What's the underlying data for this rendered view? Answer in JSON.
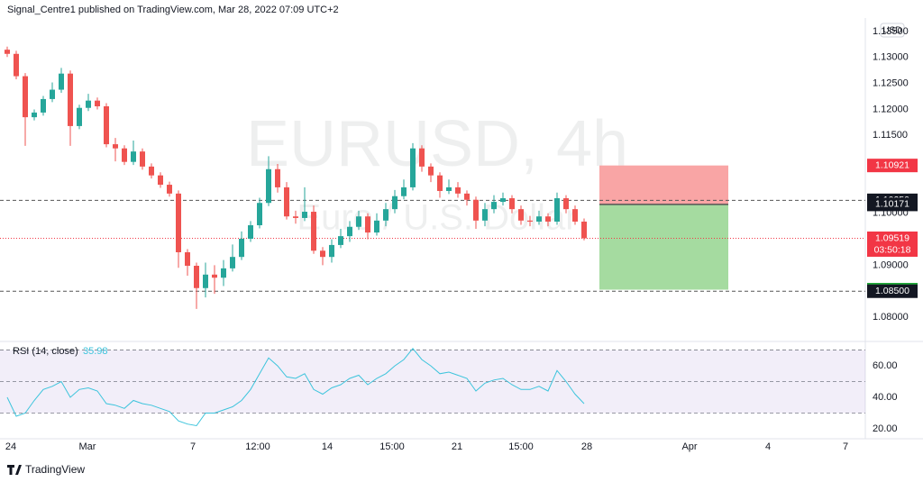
{
  "header": {
    "text": "Signal_Centre1 published on TradingView.com, Mar 28, 2022 07:09 UTC+2"
  },
  "footer": {
    "brand": "TradingView"
  },
  "chart_data": {
    "type": "candlestick",
    "title": "EURUSD, 4h",
    "subtitle": "Euro / U.S. Dollar",
    "currency": "USD",
    "up_color": "#26a69a",
    "down_color": "#ef5350",
    "open": [
      1.1315,
      1.1307,
      1.1264,
      1.1185,
      1.1194,
      1.122,
      1.1238,
      1.1269,
      1.1168,
      1.1203,
      1.1217,
      1.1206,
      1.1133,
      1.1125,
      1.1099,
      1.1119,
      1.109,
      1.1073,
      1.1055,
      1.1038,
      1.0925,
      1.0899,
      1.0856,
      1.0882,
      1.0876,
      1.0894,
      1.0916,
      1.0951,
      1.0977,
      1.102,
      1.1085,
      1.105,
      1.0994,
      1.0991,
      1.1003,
      1.0928,
      1.0916,
      1.0939,
      1.0956,
      1.0974,
      1.0994,
      1.0963,
      1.0986,
      1.1008,
      1.1033,
      1.105,
      1.1125,
      1.109,
      1.1073,
      1.1043,
      1.105,
      1.1038,
      1.1026,
      1.0986,
      1.1008,
      1.1022,
      1.1029,
      1.1008,
      1.0986,
      1.0984,
      1.0994,
      1.0984,
      1.1029,
      1.1008,
      1.0984
    ],
    "high": [
      1.1321,
      1.1313,
      1.127,
      1.12,
      1.1226,
      1.1252,
      1.128,
      1.1275,
      1.1209,
      1.123,
      1.1223,
      1.1212,
      1.1145,
      1.1131,
      1.114,
      1.1125,
      1.1096,
      1.1079,
      1.1061,
      1.1044,
      1.0931,
      1.0905,
      1.0905,
      1.09,
      1.091,
      1.094,
      1.0965,
      1.0985,
      1.103,
      1.111,
      1.1095,
      1.106,
      1.1005,
      1.105,
      1.1015,
      1.0935,
      1.095,
      1.097,
      1.0985,
      1.1005,
      1.1,
      1.1,
      1.102,
      1.1045,
      1.1065,
      1.1135,
      1.1131,
      1.1096,
      1.1079,
      1.1065,
      1.106,
      1.1044,
      1.1032,
      1.102,
      1.1035,
      1.104,
      1.1035,
      1.1015,
      1.0995,
      1.1005,
      1.1,
      1.104,
      1.1035,
      1.1015,
      1.099
    ],
    "low": [
      1.1301,
      1.1258,
      1.113,
      1.1179,
      1.1188,
      1.1214,
      1.1232,
      1.113,
      1.1162,
      1.1197,
      1.12,
      1.1127,
      1.11,
      1.1093,
      1.1093,
      1.1084,
      1.1067,
      1.1049,
      1.1032,
      1.0895,
      1.088,
      1.0816,
      1.0838,
      1.0845,
      1.086,
      1.0888,
      1.091,
      1.0945,
      1.0971,
      1.1014,
      1.104,
      1.0988,
      1.098,
      1.0985,
      1.0922,
      1.09,
      1.0905,
      1.0933,
      1.0945,
      1.0968,
      1.095,
      1.0957,
      1.0975,
      1.1,
      1.1027,
      1.1044,
      1.108,
      1.106,
      1.103,
      1.1037,
      1.103,
      1.1015,
      1.097,
      1.0975,
      1.1,
      1.1015,
      1.1,
      1.0978,
      1.0975,
      1.0978,
      1.0975,
      1.0978,
      1.1,
      1.0978,
      1.0948
    ],
    "close": [
      1.1307,
      1.1264,
      1.1185,
      1.1194,
      1.122,
      1.1238,
      1.1269,
      1.1168,
      1.1203,
      1.1217,
      1.1206,
      1.1133,
      1.1125,
      1.1099,
      1.1119,
      1.109,
      1.1073,
      1.1055,
      1.1038,
      1.0925,
      1.0899,
      1.0856,
      1.0882,
      1.0876,
      1.0894,
      1.0916,
      1.0951,
      1.0977,
      1.102,
      1.1085,
      1.105,
      1.0994,
      1.0991,
      1.1003,
      1.0928,
      1.0916,
      1.0939,
      1.0956,
      1.0974,
      1.0994,
      1.0963,
      1.0986,
      1.1008,
      1.1033,
      1.105,
      1.1125,
      1.109,
      1.1073,
      1.1043,
      1.105,
      1.1038,
      1.1026,
      1.0986,
      1.1008,
      1.1022,
      1.1029,
      1.1008,
      1.0986,
      1.0984,
      1.0994,
      1.0984,
      1.1029,
      1.1008,
      1.0984,
      1.0952
    ],
    "xlim": [
      -0.8,
      95.2
    ],
    "xticks": [
      {
        "value": 0.4,
        "label": "24"
      },
      {
        "value": 8.9,
        "label": "Mar"
      },
      {
        "value": 20.6,
        "label": "7"
      },
      {
        "value": 27.8,
        "label": "12:00"
      },
      {
        "value": 35.5,
        "label": "14"
      },
      {
        "value": 42.7,
        "label": "15:00"
      },
      {
        "value": 49.9,
        "label": "21"
      },
      {
        "value": 57,
        "label": "15:00"
      },
      {
        "value": 64.3,
        "label": "28"
      },
      {
        "value": 75.7,
        "label": "Apr"
      },
      {
        "value": 84.4,
        "label": "4"
      },
      {
        "value": 93,
        "label": "7"
      }
    ],
    "ylim": [
      1.0755,
      1.1376
    ],
    "yticks": [
      {
        "value": 1.08,
        "label": "1.08000"
      },
      {
        "value": 1.09,
        "label": "1.09000"
      },
      {
        "value": 1.1,
        "label": "1.10000"
      },
      {
        "value": 1.115,
        "label": "1.11500"
      },
      {
        "value": 1.12,
        "label": "1.12000"
      },
      {
        "value": 1.125,
        "label": "1.12500"
      },
      {
        "value": 1.13,
        "label": "1.13000"
      },
      {
        "value": 1.135,
        "label": "1.13500"
      }
    ],
    "price_lines": [
      {
        "value": 1.10921,
        "label": "1.10921",
        "color": "#f23645",
        "line": "none"
      },
      {
        "value": 1.1025,
        "label": "1.10250",
        "color": "#131722",
        "line": "dashed"
      },
      {
        "value": 1.10171,
        "label": "1.10171",
        "color": "#131722",
        "line": "none"
      },
      {
        "value": 1.09519,
        "label": "1.09519",
        "sub": "03:50:18",
        "color": "#f23645",
        "line": "dotted"
      },
      {
        "value": 1.0853,
        "label": "1.08530",
        "color": "#22ab3a",
        "line": "none"
      },
      {
        "value": 1.085,
        "label": "1.08500",
        "color": "#131722",
        "line": "dashed"
      }
    ],
    "position": {
      "x": [
        65.7,
        80
      ],
      "stop": 1.10921,
      "entry": 1.10171,
      "target": 1.0853,
      "stop_color": "#f9a5a5",
      "target_color": "#a5dba0"
    },
    "rsi": {
      "type": "line",
      "name": "RSI (14, close)",
      "last_label": 35.98,
      "color": "#3cc4dc",
      "values": [
        40,
        28,
        30,
        38,
        45,
        47,
        50,
        40,
        45,
        46,
        44,
        36,
        35,
        33,
        38,
        36,
        35,
        33,
        31,
        25,
        23,
        22,
        30,
        30,
        32,
        34,
        38,
        45,
        55,
        65,
        60,
        53,
        52,
        55,
        45,
        42,
        46,
        48,
        52,
        54,
        48,
        52,
        55,
        60,
        64,
        71,
        64,
        60,
        55,
        56,
        54,
        52,
        44,
        49,
        51,
        52,
        48,
        45,
        45,
        47,
        44,
        57,
        50,
        42,
        35.98
      ],
      "ylim": [
        13.7,
        74.9
      ],
      "yticks": [
        {
          "value": 20,
          "label": "20.00"
        },
        {
          "value": 40,
          "label": "40.00"
        },
        {
          "value": 60,
          "label": "60.00"
        }
      ],
      "bands": [
        70,
        50,
        30
      ]
    }
  }
}
